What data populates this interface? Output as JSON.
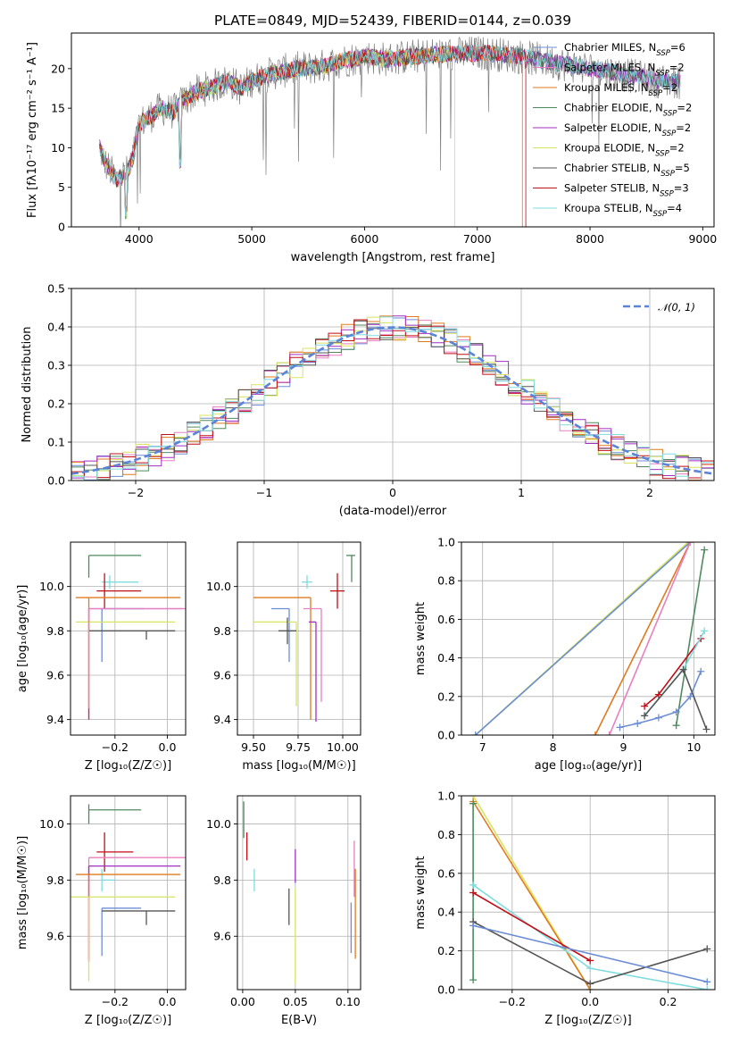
{
  "figure": {
    "title": "PLATE=0849, MJD=52439, FIBERID=0144, z=0.039"
  },
  "colors": {
    "Chabrier MILES": "#6b8dd6",
    "Salpeter MILES": "#e87fbf",
    "Kroupa MILES": "#e07a1f",
    "Chabrier ELODIE": "#4f8a5f",
    "Salpeter ELODIE": "#a12fc2",
    "Kroupa ELODIE": "#d9e35f",
    "Chabrier STELIB": "#555555",
    "Salpeter STELIB": "#c00f17",
    "Kroupa STELIB": "#7fdcdf"
  },
  "chart_data": [
    {
      "id": "spectrum",
      "type": "line",
      "xlabel": "wavelength [Angstrom, rest frame]",
      "ylabel": "Flux [fλ10⁻¹⁷ erg cm⁻² s⁻¹ A⁻¹]",
      "xlim": [
        3400,
        9100
      ],
      "ylim": [
        0,
        24.5
      ],
      "xticks": [
        4000,
        5000,
        6000,
        7000,
        8000,
        9000
      ],
      "yticks": [
        0,
        5,
        10,
        15,
        20
      ],
      "legend_position": "upper right",
      "legend": [
        {
          "label": "Chabrier MILES, N",
          "sub": "SSP",
          "suffix": "=6",
          "color_key": "Chabrier MILES"
        },
        {
          "label": "Salpeter MILES, N",
          "sub": "SSP",
          "suffix": "=2",
          "color_key": "Salpeter MILES"
        },
        {
          "label": "Kroupa MILES, N",
          "sub": "SSP",
          "suffix": "=2",
          "color_key": "Kroupa MILES"
        },
        {
          "label": "Chabrier ELODIE, N",
          "sub": "SSP",
          "suffix": "=2",
          "color_key": "Chabrier ELODIE"
        },
        {
          "label": "Salpeter ELODIE, N",
          "sub": "SSP",
          "suffix": "=2",
          "color_key": "Salpeter ELODIE"
        },
        {
          "label": "Kroupa ELODIE, N",
          "sub": "SSP",
          "suffix": "=2",
          "color_key": "Kroupa ELODIE"
        },
        {
          "label": "Chabrier STELIB, N",
          "sub": "SSP",
          "suffix": "=5",
          "color_key": "Chabrier STELIB"
        },
        {
          "label": "Salpeter STELIB, N",
          "sub": "SSP",
          "suffix": "=3",
          "color_key": "Salpeter STELIB"
        },
        {
          "label": "Kroupa STELIB, N",
          "sub": "SSP",
          "suffix": "=4",
          "color_key": "Kroupa STELIB"
        }
      ],
      "data_anchor_points": {
        "x": [
          3650,
          3700,
          3800,
          3900,
          3950,
          4000,
          4100,
          4200,
          4300,
          4400,
          4500,
          4600,
          4700,
          4800,
          4900,
          5000,
          5200,
          5400,
          5600,
          5800,
          6000,
          6200,
          6400,
          6600,
          6800,
          7000,
          7200,
          7400,
          7600,
          7800,
          8000,
          8200,
          8400,
          8600,
          8800
        ],
        "y": [
          10,
          8,
          6,
          7,
          9,
          13,
          14,
          15,
          14.5,
          16,
          17,
          17.5,
          18,
          18.5,
          17.5,
          18.5,
          19.5,
          20,
          20.2,
          21,
          21.5,
          21.2,
          21.5,
          21.8,
          21.8,
          22,
          21.8,
          21.5,
          21,
          20.5,
          20,
          19.5,
          19,
          18.5,
          18.3
        ]
      },
      "model_cutoffs": [
        {
          "series": "Kroupa ELODIE",
          "x_end": 6800
        },
        {
          "series": "Salpeter STELIB",
          "x_end": 7430
        },
        {
          "series": "Kroupa MILES",
          "x_end": 7400
        }
      ]
    },
    {
      "id": "residuals",
      "type": "histogram",
      "xlabel": "(data-model)/error",
      "ylabel": "Normed distribution",
      "xlim": [
        -2.5,
        2.5
      ],
      "ylim": [
        0,
        0.5
      ],
      "xticks": [
        -2,
        -1,
        0,
        1,
        2
      ],
      "yticks": [
        0.0,
        0.1,
        0.2,
        0.3,
        0.4,
        0.5
      ],
      "legend_position": "upper right",
      "legend": [
        {
          "label": "𝒩(0, 1)",
          "style": "dashed",
          "color": "#5b84d8"
        }
      ],
      "bin_width": 0.1,
      "reference_curve": "standard normal pdf"
    },
    {
      "id": "age_vs_Z",
      "type": "errorbar",
      "xlabel": "Z [log₁₀(Z/Z☉)]",
      "ylabel": "age  [log₁₀(age/yr)]",
      "xlim": [
        -0.37,
        0.07
      ],
      "ylim": [
        9.33,
        10.2
      ],
      "xticks": [
        -0.2,
        0.0
      ],
      "yticks": [
        9.4,
        9.6,
        9.8,
        10.0
      ],
      "points": [
        {
          "series": "Chabrier ELODIE",
          "x": -0.3,
          "xerr": [
            0.0,
            0.2
          ],
          "y": 10.14,
          "yerr": [
            0.1,
            0.0
          ]
        },
        {
          "series": "Kroupa STELIB",
          "x": -0.22,
          "xerr": [
            0.03,
            0.11
          ],
          "y": 10.02,
          "yerr": [
            0.03,
            0.03
          ]
        },
        {
          "series": "Salpeter STELIB",
          "x": -0.24,
          "xerr": [
            0.03,
            0.14
          ],
          "y": 9.98,
          "yerr": [
            0.08,
            0.08
          ]
        },
        {
          "series": "Kroupa MILES",
          "x": -0.3,
          "xerr": [
            0.05,
            0.35
          ],
          "y": 9.95,
          "yerr": [
            0.55,
            0.0
          ]
        },
        {
          "series": "Chabrier MILES",
          "x": -0.25,
          "xerr": [
            0.0,
            0.16
          ],
          "y": 9.9,
          "yerr": [
            0.24,
            0.0
          ]
        },
        {
          "series": "Salpeter ELODIE",
          "x": -0.3,
          "xerr": [
            0.0,
            0.36
          ],
          "y": 9.9,
          "yerr": [
            0.5,
            0.0
          ]
        },
        {
          "series": "Kroupa ELODIE",
          "x": -0.3,
          "xerr": [
            0.05,
            0.33
          ],
          "y": 9.84,
          "yerr": [
            0.38,
            0.0
          ]
        },
        {
          "series": "Chabrier STELIB",
          "x": -0.08,
          "xerr": [
            0.22,
            0.11
          ],
          "y": 9.8,
          "yerr": [
            0.04,
            0.0
          ]
        },
        {
          "series": "Salpeter MILES",
          "x": -0.3,
          "xerr": [
            0.0,
            0.38
          ],
          "y": 9.9,
          "yerr": [
            0.45,
            0.0
          ]
        }
      ]
    },
    {
      "id": "age_vs_mass",
      "type": "errorbar",
      "xlabel": "mass [log₁₀(M/M☉)]",
      "ylabel": "",
      "xlim": [
        9.41,
        10.1
      ],
      "ylim": [
        9.33,
        10.2
      ],
      "xticks": [
        9.5,
        9.75,
        10.0
      ],
      "yticks": [
        9.4,
        9.6,
        9.8,
        10.0
      ],
      "points": [
        {
          "series": "Chabrier ELODIE",
          "x": 10.05,
          "xerr": [
            0.03,
            0.02
          ],
          "y": 10.14,
          "yerr": [
            0.12,
            0.0
          ]
        },
        {
          "series": "Kroupa STELIB",
          "x": 9.8,
          "xerr": [
            0.03,
            0.03
          ],
          "y": 10.02,
          "yerr": [
            0.03,
            0.03
          ]
        },
        {
          "series": "Salpeter STELIB",
          "x": 9.97,
          "xerr": [
            0.04,
            0.04
          ],
          "y": 9.98,
          "yerr": [
            0.08,
            0.08
          ]
        },
        {
          "series": "Kroupa MILES",
          "x": 9.82,
          "xerr": [
            0.32,
            0.0
          ],
          "y": 9.95,
          "yerr": [
            0.55,
            0.0
          ]
        },
        {
          "series": "Chabrier MILES",
          "x": 9.7,
          "xerr": [
            0.1,
            0.0
          ],
          "y": 9.9,
          "yerr": [
            0.24,
            0.0
          ]
        },
        {
          "series": "Salpeter ELODIE",
          "x": 9.85,
          "xerr": [
            0.04,
            0.0
          ],
          "y": 9.84,
          "yerr": [
            0.45,
            0.0
          ]
        },
        {
          "series": "Kroupa ELODIE",
          "x": 9.74,
          "xerr": [
            0.24,
            0.0
          ],
          "y": 9.84,
          "yerr": [
            0.38,
            0.0
          ]
        },
        {
          "series": "Chabrier STELIB",
          "x": 9.69,
          "xerr": [
            0.05,
            0.05
          ],
          "y": 9.8,
          "yerr": [
            0.06,
            0.06
          ]
        },
        {
          "series": "Salpeter MILES",
          "x": 9.88,
          "xerr": [
            0.1,
            0.0
          ],
          "y": 9.9,
          "yerr": [
            0.42,
            0.0
          ]
        }
      ]
    },
    {
      "id": "weight_vs_age",
      "type": "line",
      "xlabel": "age  [log₁₀(age/yr)]",
      "ylabel": "mass weight",
      "xlim": [
        6.7,
        10.3
      ],
      "ylim": [
        0,
        1
      ],
      "xticks": [
        7,
        8,
        9,
        10
      ],
      "yticks": [
        0.0,
        0.2,
        0.4,
        0.6,
        0.8,
        1.0
      ],
      "series": [
        {
          "series": "Kroupa ELODIE",
          "x": [
            6.9,
            9.92
          ],
          "y": [
            0.0,
            1.0
          ]
        },
        {
          "series": "Chabrier MILES",
          "x": [
            6.9,
            9.95
          ],
          "y": [
            0.0,
            1.0
          ]
        },
        {
          "series": "Kroupa MILES",
          "x": [
            8.6,
            9.95
          ],
          "y": [
            0.0,
            1.0
          ]
        },
        {
          "series": "Salpeter MILES",
          "x": [
            8.8,
            9.95
          ],
          "y": [
            0.0,
            1.0
          ]
        },
        {
          "series": "Chabrier ELODIE",
          "x": [
            9.75,
            10.15
          ],
          "y": [
            0.05,
            0.96
          ]
        },
        {
          "series": "Chabrier MILES",
          "x": [
            8.95,
            9.2,
            9.5,
            9.75,
            9.95,
            10.1
          ],
          "y": [
            0.04,
            0.06,
            0.09,
            0.12,
            0.2,
            0.33
          ]
        },
        {
          "series": "Salpeter STELIB",
          "x": [
            9.3,
            9.5,
            10.1
          ],
          "y": [
            0.15,
            0.21,
            0.5
          ]
        },
        {
          "series": "Kroupa STELIB",
          "x": [
            9.3,
            9.85,
            10.15
          ],
          "y": [
            0.1,
            0.34,
            0.54
          ]
        },
        {
          "series": "Chabrier STELIB",
          "x": [
            9.3,
            9.85,
            10.18
          ],
          "y": [
            0.1,
            0.34,
            0.03
          ]
        }
      ]
    },
    {
      "id": "mass_vs_Z",
      "type": "errorbar",
      "xlabel": "Z [log₁₀(Z/Z☉)]",
      "ylabel": "mass [log₁₀(M/M☉)]",
      "xlim": [
        -0.37,
        0.07
      ],
      "ylim": [
        9.41,
        10.1
      ],
      "xticks": [
        -0.2,
        0.0
      ],
      "yticks": [
        9.6,
        9.8,
        10.0
      ],
      "points": [
        {
          "series": "Chabrier ELODIE",
          "x": -0.3,
          "xerr": [
            0.0,
            0.2
          ],
          "y": 10.05,
          "yerr": [
            0.05,
            0.02
          ]
        },
        {
          "series": "Salpeter STELIB",
          "x": -0.24,
          "xerr": [
            0.03,
            0.11
          ],
          "y": 9.9,
          "yerr": [
            0.07,
            0.07
          ]
        },
        {
          "series": "Salpeter MILES",
          "x": -0.3,
          "xerr": [
            0.0,
            0.38
          ],
          "y": 9.88,
          "yerr": [
            0.36,
            0.0
          ]
        },
        {
          "series": "Salpeter ELODIE",
          "x": -0.3,
          "xerr": [
            0.0,
            0.35
          ],
          "y": 9.85,
          "yerr": [
            0.34,
            0.0
          ]
        },
        {
          "series": "Kroupa STELIB",
          "x": -0.25,
          "xerr": [
            0.0,
            0.05
          ],
          "y": 9.8,
          "yerr": [
            0.04,
            0.04
          ]
        },
        {
          "series": "Kroupa MILES",
          "x": -0.3,
          "xerr": [
            0.05,
            0.35
          ],
          "y": 9.82,
          "yerr": [
            0.31,
            0.0
          ]
        },
        {
          "series": "Kroupa ELODIE",
          "x": -0.3,
          "xerr": [
            0.07,
            0.33
          ],
          "y": 9.74,
          "yerr": [
            0.3,
            0.0
          ]
        },
        {
          "series": "Chabrier MILES",
          "x": -0.25,
          "xerr": [
            0.0,
            0.15
          ],
          "y": 9.7,
          "yerr": [
            0.17,
            0.0
          ]
        },
        {
          "series": "Chabrier STELIB",
          "x": -0.08,
          "xerr": [
            0.17,
            0.11
          ],
          "y": 9.69,
          "yerr": [
            0.05,
            0.0
          ]
        }
      ]
    },
    {
      "id": "mass_vs_EBV",
      "type": "errorbar",
      "xlabel": "E(B-V)",
      "ylabel": "",
      "xlim": [
        -0.005,
        0.112
      ],
      "ylim": [
        9.41,
        10.1
      ],
      "xticks": [
        0.0,
        0.05,
        0.1
      ],
      "yticks": [
        9.6,
        9.8,
        10.0
      ],
      "points": [
        {
          "series": "Chabrier ELODIE",
          "x": 0.001,
          "y": 10.05,
          "yerr": [
            0.1,
            0.03
          ]
        },
        {
          "series": "Salpeter STELIB",
          "x": 0.004,
          "y": 9.92,
          "yerr": [
            0.05,
            0.05
          ]
        },
        {
          "series": "Kroupa STELIB",
          "x": 0.011,
          "y": 9.8,
          "yerr": [
            0.04,
            0.04
          ]
        },
        {
          "series": "Chabrier STELIB",
          "x": 0.044,
          "y": 9.69,
          "yerr": [
            0.05,
            0.08
          ]
        },
        {
          "series": "Salpeter ELODIE",
          "x": 0.05,
          "y": 9.85,
          "yerr": [
            0.06,
            0.06
          ]
        },
        {
          "series": "Kroupa ELODIE",
          "x": 0.05,
          "y": 9.6,
          "yerr": [
            0.17,
            0.17
          ]
        },
        {
          "series": "Chabrier MILES",
          "x": 0.103,
          "y": 9.62,
          "yerr": [
            0.08,
            0.1
          ]
        },
        {
          "series": "Salpeter MILES",
          "x": 0.106,
          "y": 9.84,
          "yerr": [
            0.1,
            0.1
          ]
        },
        {
          "series": "Kroupa MILES",
          "x": 0.107,
          "y": 9.68,
          "yerr": [
            0.16,
            0.16
          ]
        }
      ]
    },
    {
      "id": "weight_vs_Z",
      "type": "line",
      "xlabel": "Z [log₁₀(Z/Z☉)]",
      "ylabel": "mass weight",
      "xlim": [
        -0.33,
        0.32
      ],
      "ylim": [
        0,
        1
      ],
      "xticks": [
        -0.2,
        0.0,
        0.2
      ],
      "yticks": [
        0.0,
        0.2,
        0.4,
        0.6,
        0.8,
        1.0
      ],
      "series": [
        {
          "series": "Kroupa ELODIE",
          "x": [
            -0.3,
            0.0
          ],
          "y": [
            1.0,
            0.0
          ]
        },
        {
          "series": "Kroupa MILES",
          "x": [
            -0.3,
            0.0
          ],
          "y": [
            0.97,
            0.0
          ]
        },
        {
          "series": "Chabrier ELODIE",
          "x": [
            -0.3,
            -0.3
          ],
          "y": [
            0.96,
            0.05
          ]
        },
        {
          "series": "Kroupa STELIB",
          "x": [
            -0.3,
            0.0,
            0.3
          ],
          "y": [
            0.54,
            0.11,
            0.0
          ]
        },
        {
          "series": "Salpeter STELIB",
          "x": [
            -0.3,
            0.0
          ],
          "y": [
            0.5,
            0.15
          ]
        },
        {
          "series": "Chabrier STELIB",
          "x": [
            -0.3,
            0.0,
            0.3
          ],
          "y": [
            0.35,
            0.03,
            0.21
          ]
        },
        {
          "series": "Chabrier MILES",
          "x": [
            -0.3,
            0.3
          ],
          "y": [
            0.33,
            0.04
          ]
        }
      ]
    }
  ]
}
